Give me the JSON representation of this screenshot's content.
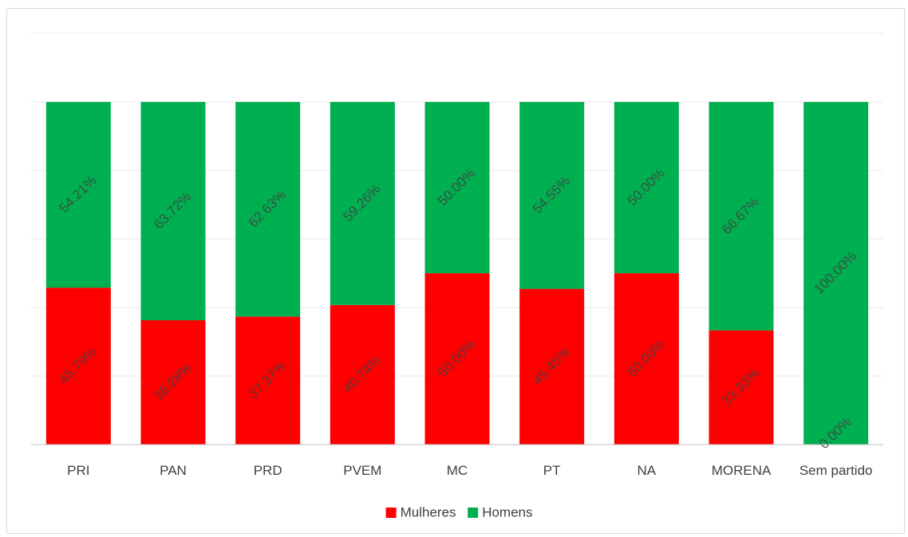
{
  "chart_data": {
    "type": "bar",
    "stacked": true,
    "categories": [
      "PRI",
      "PAN",
      "PRD",
      "PVEM",
      "MC",
      "PT",
      "NA",
      "MORENA",
      "Sem partido"
    ],
    "series": [
      {
        "name": "Mulheres",
        "color": "#ff0000",
        "values": [
          45.79,
          36.28,
          37.37,
          40.74,
          50.0,
          45.45,
          50.0,
          33.33,
          0.0
        ],
        "labels": [
          "45.79%",
          "36.28%",
          "37.37%",
          "40.74%",
          "50.00%",
          "45.45%",
          "50.00%",
          "33.33%",
          "0.00%"
        ]
      },
      {
        "name": "Homens",
        "color": "#00b050",
        "values": [
          54.21,
          63.72,
          62.63,
          59.26,
          50.0,
          54.55,
          50.0,
          66.67,
          100.0
        ],
        "labels": [
          "54.21%",
          "63.72%",
          "62.63%",
          "59.26%",
          "50.00%",
          "54.55%",
          "50.00%",
          "66.67%",
          "100.00%"
        ]
      }
    ],
    "ylim": [
      0,
      120
    ],
    "grid": true,
    "legend_position": "bottom"
  }
}
